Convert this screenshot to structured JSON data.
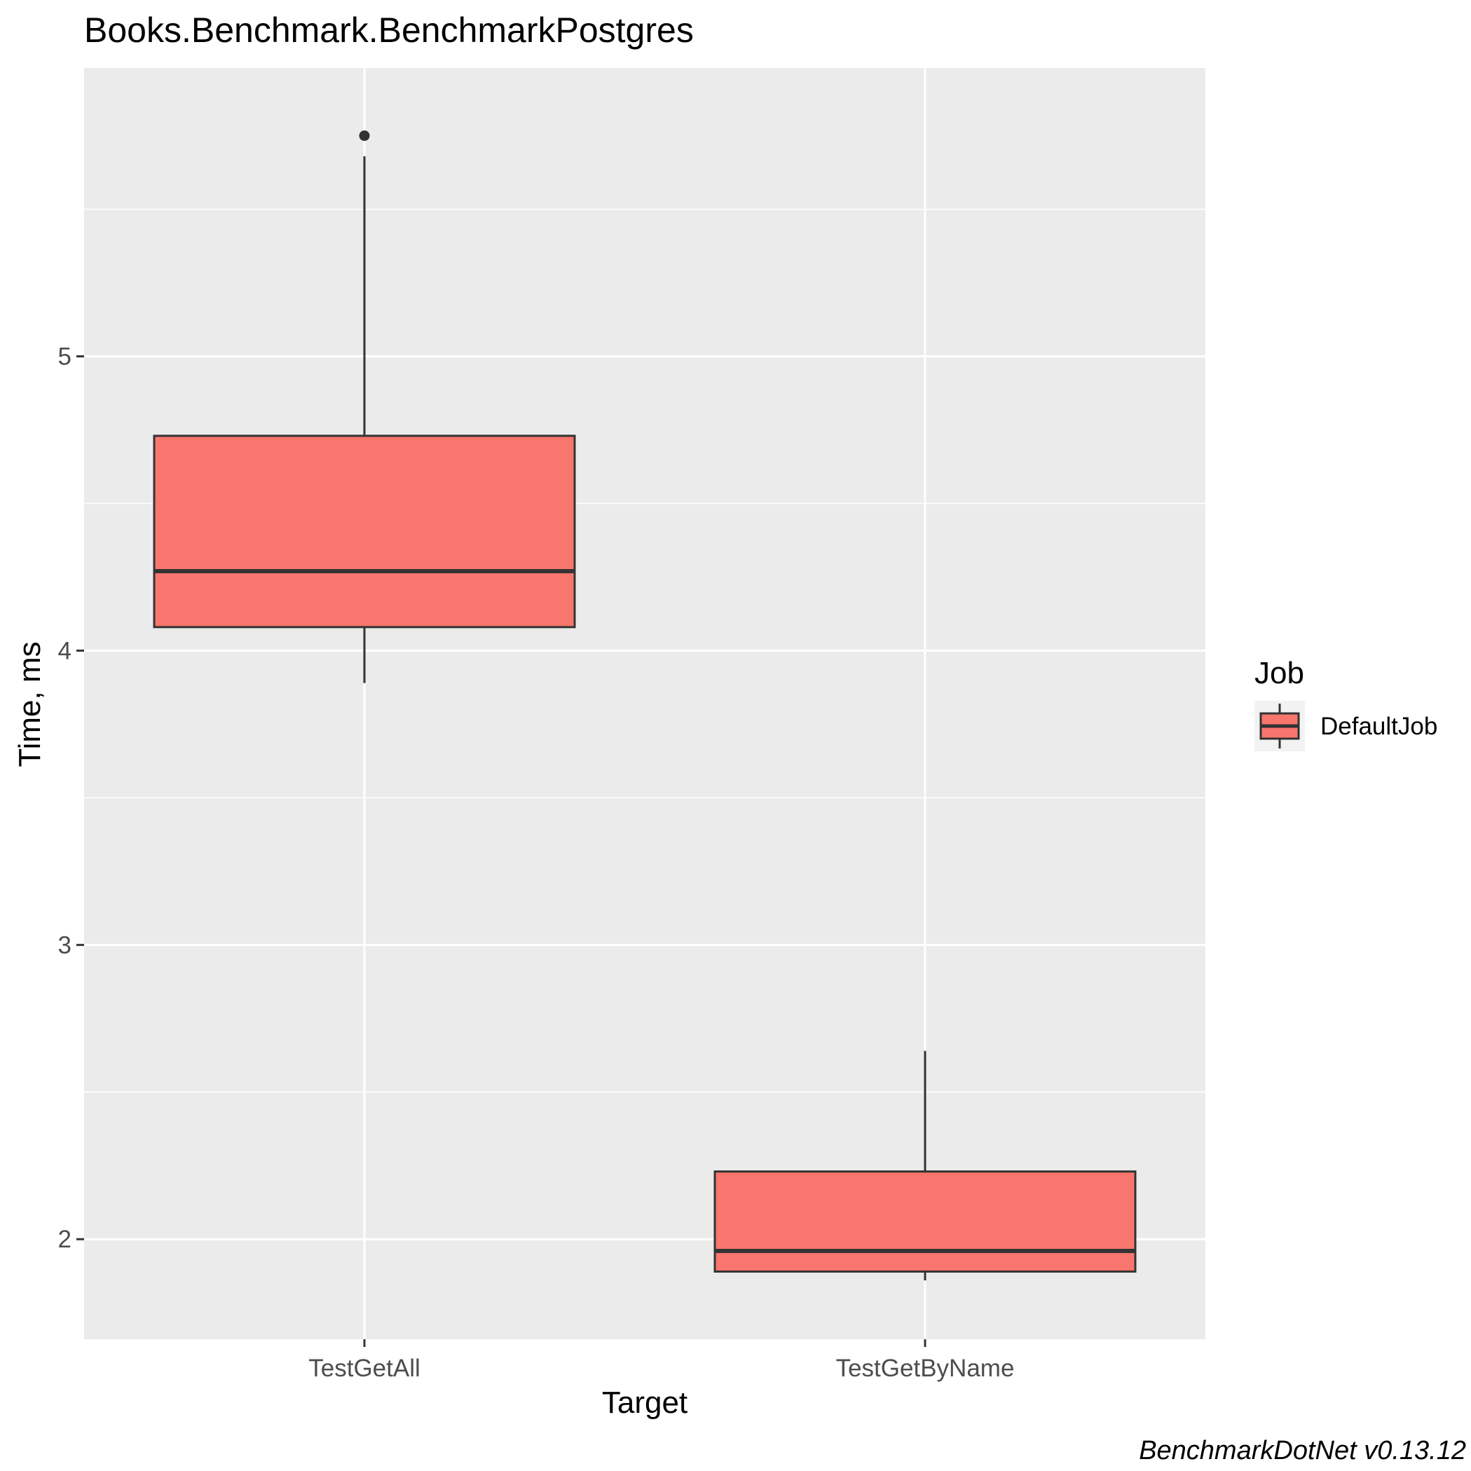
{
  "chart_data": {
    "type": "boxplot",
    "title": "Books.Benchmark.BenchmarkPostgres",
    "xlabel": "Target",
    "ylabel": "Time, ms",
    "categories": [
      "TestGetAll",
      "TestGetByName"
    ],
    "ylim": [
      1.66,
      5.98
    ],
    "y_ticks": [
      2,
      3,
      4,
      5
    ],
    "grid": true,
    "legend": {
      "title": "Job",
      "entries": [
        "DefaultJob"
      ],
      "position": "right"
    },
    "series": [
      {
        "name": "DefaultJob",
        "color": "#F8766D",
        "boxes": [
          {
            "category": "TestGetAll",
            "whisker_low": 3.89,
            "q1": 4.08,
            "median": 4.27,
            "q3": 4.73,
            "whisker_high": 5.68,
            "outliers": [
              5.75
            ]
          },
          {
            "category": "TestGetByName",
            "whisker_low": 1.86,
            "q1": 1.89,
            "median": 1.96,
            "q3": 2.23,
            "whisker_high": 2.64,
            "outliers": []
          }
        ]
      }
    ],
    "caption": "BenchmarkDotNet v0.13.12"
  },
  "colors": {
    "panel_background": "#EBEBEB",
    "grid": "#FFFFFF",
    "box_fill": "#F8766D",
    "box_line": "#333333"
  }
}
